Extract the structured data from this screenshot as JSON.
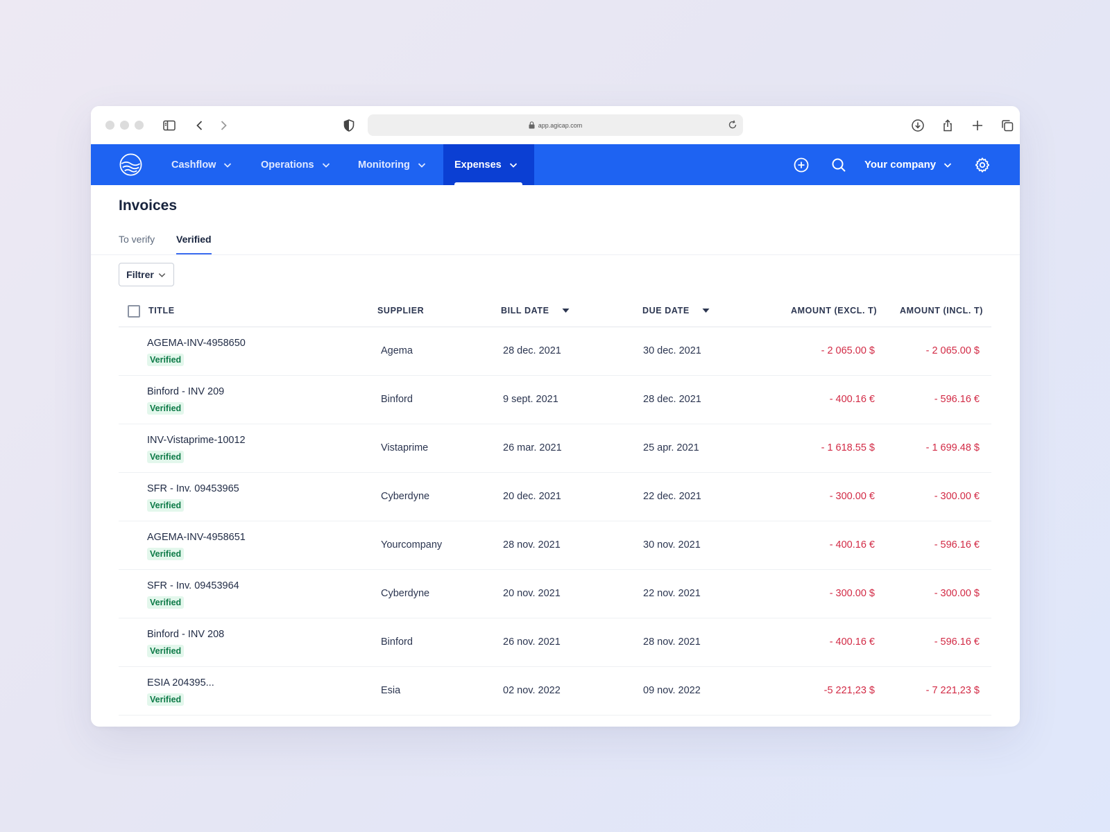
{
  "browser": {
    "url": "app.agicap.com"
  },
  "nav": {
    "items": [
      {
        "label": "Cashflow"
      },
      {
        "label": "Operations"
      },
      {
        "label": "Monitoring"
      },
      {
        "label": "Expenses"
      }
    ],
    "company_label": "Your company"
  },
  "page": {
    "title": "Invoices",
    "tabs": [
      {
        "label": "To verify",
        "active": false
      },
      {
        "label": "Verified",
        "active": true
      }
    ],
    "filter_label": "Filtrer"
  },
  "table": {
    "headers": {
      "title": "TITLE",
      "supplier": "SUPPLIER",
      "bill_date": "BILL DATE",
      "due_date": "DUE DATE",
      "amount_excl": "AMOUNT (EXCL. T)",
      "amount_incl": "AMOUNT (INCL. T)"
    },
    "rows": [
      {
        "title": "AGEMA-INV-4958650",
        "status": "Verified",
        "supplier": "Agema",
        "bill_date": "28 dec. 2021",
        "due_date": "30 dec. 2021",
        "amount_excl": "- 2 065.00 $",
        "amount_incl": "- 2 065.00 $"
      },
      {
        "title": "Binford - INV 209",
        "status": "Verified",
        "supplier": "Binford",
        "bill_date": "9 sept. 2021",
        "due_date": "28 dec. 2021",
        "amount_excl": "- 400.16 €",
        "amount_incl": "- 596.16 €"
      },
      {
        "title": "INV-Vistaprime-10012",
        "status": "Verified",
        "supplier": "Vistaprime",
        "bill_date": "26 mar. 2021",
        "due_date": "25 apr. 2021",
        "amount_excl": "- 1 618.55 $",
        "amount_incl": "- 1 699.48 $"
      },
      {
        "title": "SFR - Inv. 09453965",
        "status": "Verified",
        "supplier": "Cyberdyne",
        "bill_date": "20 dec. 2021",
        "due_date": "22 dec. 2021",
        "amount_excl": "- 300.00 €",
        "amount_incl": "- 300.00 €"
      },
      {
        "title": "AGEMA-INV-4958651",
        "status": "Verified",
        "supplier": "Yourcompany",
        "bill_date": "28 nov. 2021",
        "due_date": "30 nov. 2021",
        "amount_excl": "- 400.16 €",
        "amount_incl": "- 596.16 €"
      },
      {
        "title": "SFR - Inv. 09453964",
        "status": "Verified",
        "supplier": "Cyberdyne",
        "bill_date": "20 nov. 2021",
        "due_date": "22 nov. 2021",
        "amount_excl": "- 300.00 $",
        "amount_incl": "- 300.00 $"
      },
      {
        "title": "Binford - INV 208",
        "status": "Verified",
        "supplier": "Binford",
        "bill_date": "26 nov. 2021",
        "due_date": "28 nov. 2021",
        "amount_excl": "- 400.16 €",
        "amount_incl": "- 596.16 €"
      },
      {
        "title": "ESIA 204395...",
        "status": "Verified",
        "supplier": "Esia",
        "bill_date": "02 nov. 2022",
        "due_date": "09 nov. 2022",
        "amount_excl": "-5 221,23 $",
        "amount_incl": "- 7 221,23 $"
      }
    ]
  },
  "colors": {
    "nav_bg": "#1e63f2",
    "nav_active_bg": "#0b3fd3",
    "amount_negative": "#d22a45",
    "badge_bg": "#e3f7ec",
    "badge_text": "#0d7a47"
  },
  "icons": [
    "sidebar-toggle-icon",
    "back-icon",
    "forward-icon",
    "shield-icon",
    "lock-icon",
    "reload-icon",
    "download-icon",
    "share-icon",
    "new-tab-icon",
    "tabs-icon",
    "logo-icon",
    "chevron-down-icon",
    "add-circle-icon",
    "search-icon",
    "gear-icon",
    "sort-down-icon"
  ]
}
